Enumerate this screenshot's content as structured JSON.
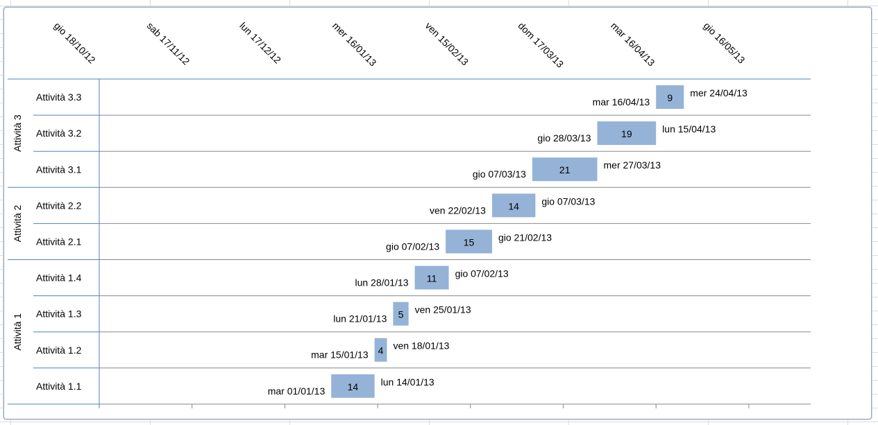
{
  "chart_data": {
    "type": "gantt",
    "x_axis": {
      "min": "2012-10-18",
      "max": "2013-06-05",
      "tick_days": 30,
      "tick_labels": [
        "gio 18/10/12",
        "sab 17/11/12",
        "lun 17/12/12",
        "mer 16/01/13",
        "ven 15/02/13",
        "dom 17/03/13",
        "mar 16/04/13",
        "gio 16/05/13"
      ]
    },
    "bar_color": "#95b3d7",
    "groups": [
      {
        "name": "Attività 3",
        "tasks": [
          {
            "name": "Attività 3.3",
            "start": "2013-04-16",
            "duration": 9,
            "start_label": "mar 16/04/13",
            "end_label": "mer 24/04/13"
          },
          {
            "name": "Attività 3.2",
            "start": "2013-03-28",
            "duration": 19,
            "start_label": "gio 28/03/13",
            "end_label": "lun 15/04/13"
          },
          {
            "name": "Attività 3.1",
            "start": "2013-03-07",
            "duration": 21,
            "start_label": "gio 07/03/13",
            "end_label": "mer 27/03/13"
          }
        ]
      },
      {
        "name": "Attività 2",
        "tasks": [
          {
            "name": "Attività 2.2",
            "start": "2013-02-22",
            "duration": 14,
            "start_label": "ven 22/02/13",
            "end_label": "gio 07/03/13"
          },
          {
            "name": "Attività 2.1",
            "start": "2013-02-07",
            "duration": 15,
            "start_label": "gio 07/02/13",
            "end_label": "gio 21/02/13"
          }
        ]
      },
      {
        "name": "Attività 1",
        "tasks": [
          {
            "name": "Attività 1.4",
            "start": "2013-01-28",
            "duration": 11,
            "start_label": "lun 28/01/13",
            "end_label": "gio 07/02/13"
          },
          {
            "name": "Attività 1.3",
            "start": "2013-01-21",
            "duration": 5,
            "start_label": "lun 21/01/13",
            "end_label": "ven 25/01/13"
          },
          {
            "name": "Attività 1.2",
            "start": "2013-01-15",
            "duration": 4,
            "start_label": "mar 15/01/13",
            "end_label": "ven 18/01/13"
          },
          {
            "name": "Attività 1.1",
            "start": "2013-01-01",
            "duration": 14,
            "start_label": "mar 01/01/13",
            "end_label": "lun 14/01/13"
          }
        ]
      }
    ]
  }
}
